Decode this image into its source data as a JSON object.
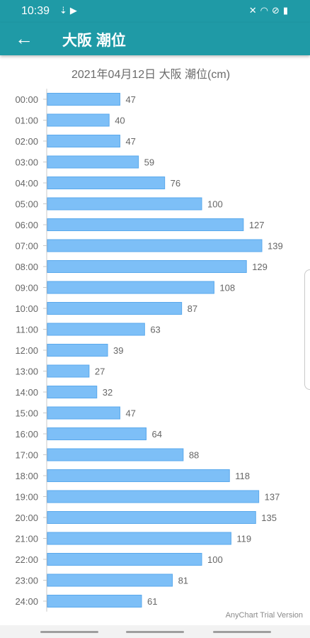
{
  "status_bar": {
    "time": "10:39",
    "left_icons": [
      "download-icon",
      "play-store-icon"
    ],
    "right_icons": [
      "mute-icon",
      "wifi-icon",
      "do-not-disturb-icon",
      "battery-icon"
    ]
  },
  "app_bar": {
    "back_icon": "arrow-left-icon",
    "title": "大阪 潮位"
  },
  "chart_data": {
    "type": "bar",
    "orientation": "horizontal",
    "title": "2021年04月12日 大阪 潮位(cm)",
    "categories": [
      "00:00",
      "01:00",
      "02:00",
      "03:00",
      "04:00",
      "05:00",
      "06:00",
      "07:00",
      "08:00",
      "09:00",
      "10:00",
      "11:00",
      "12:00",
      "13:00",
      "14:00",
      "15:00",
      "16:00",
      "17:00",
      "18:00",
      "19:00",
      "20:00",
      "21:00",
      "22:00",
      "23:00",
      "24:00"
    ],
    "values": [
      47,
      40,
      47,
      59,
      76,
      100,
      127,
      139,
      129,
      108,
      87,
      63,
      39,
      27,
      32,
      47,
      64,
      88,
      118,
      137,
      135,
      119,
      100,
      81,
      61
    ],
    "xlim": [
      0,
      139
    ],
    "bar_color": "#7dbff7",
    "bar_border_color": "#5aa9ec",
    "label_color": "#666666",
    "grid": false
  },
  "watermark": "AnyChart Trial Version"
}
